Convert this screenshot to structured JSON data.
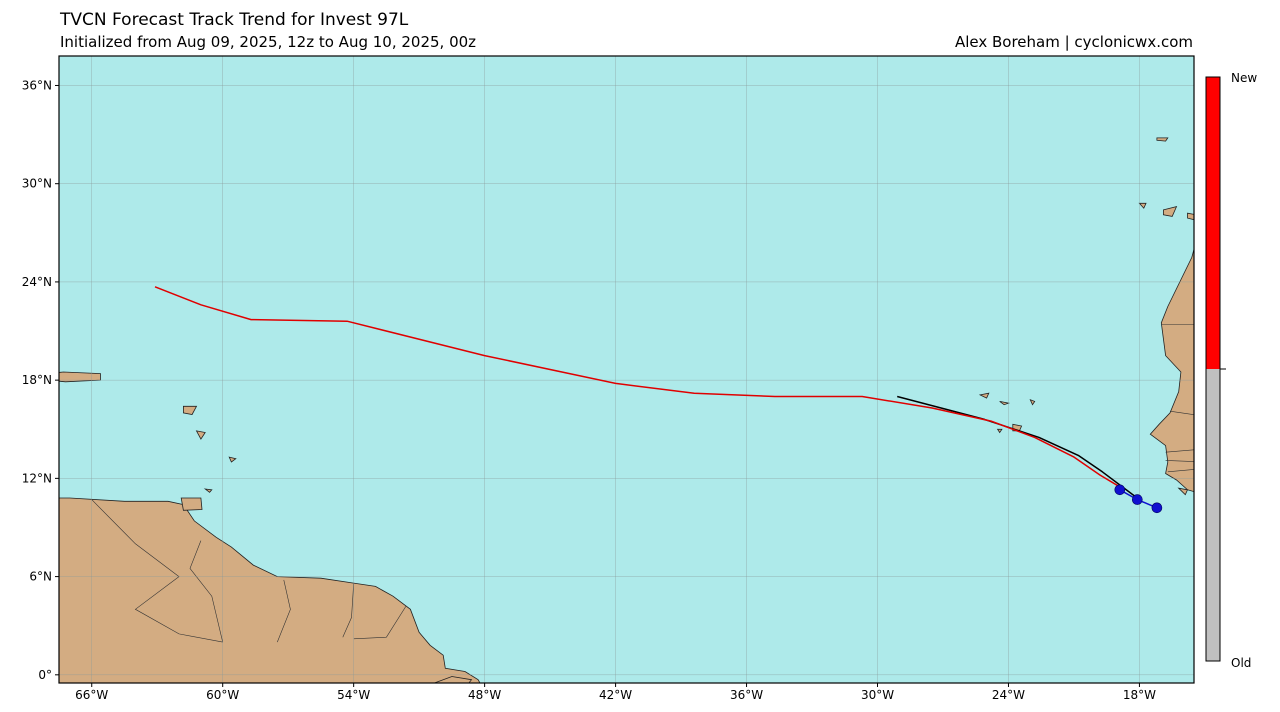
{
  "header": {
    "title": "TVCN Forecast Track Trend for Invest 97L",
    "subtitle": "Initialized from Aug 09, 2025, 12z to Aug 10, 2025, 00z",
    "credit": "Alex Boreham | cyclonicwx.com"
  },
  "map": {
    "lon_range": [
      -67.5,
      -15.5
    ],
    "lat_range": [
      -0.5,
      37.8
    ],
    "ocean_color": "#aeeaea",
    "land_color": "#d3ac82",
    "lon_ticks": [
      {
        "value": -66,
        "label": "66°W"
      },
      {
        "value": -60,
        "label": "60°W"
      },
      {
        "value": -54,
        "label": "54°W"
      },
      {
        "value": -48,
        "label": "48°W"
      },
      {
        "value": -42,
        "label": "42°W"
      },
      {
        "value": -36,
        "label": "36°W"
      },
      {
        "value": -30,
        "label": "30°W"
      },
      {
        "value": -24,
        "label": "24°W"
      },
      {
        "value": -18,
        "label": "18°W"
      }
    ],
    "lat_ticks": [
      {
        "value": 0,
        "label": "0°"
      },
      {
        "value": 6,
        "label": "6°N"
      },
      {
        "value": 12,
        "label": "12°N"
      },
      {
        "value": 18,
        "label": "18°N"
      },
      {
        "value": 24,
        "label": "24°N"
      },
      {
        "value": 30,
        "label": "30°N"
      },
      {
        "value": 36,
        "label": "36°N"
      }
    ],
    "tracks": [
      {
        "run": "Aug 10, 2025, 00z",
        "color": "#e00000",
        "points": [
          [
            -18.8,
            11.4
          ],
          [
            -19.8,
            12.2
          ],
          [
            -21.0,
            13.3
          ],
          [
            -22.8,
            14.5
          ],
          [
            -24.8,
            15.5
          ],
          [
            -27.5,
            16.3
          ],
          [
            -30.7,
            17.0
          ],
          [
            -34.7,
            17.0
          ],
          [
            -38.4,
            17.2
          ],
          [
            -42.0,
            17.8
          ],
          [
            -48.0,
            19.5
          ],
          [
            -54.3,
            21.6
          ],
          [
            -58.7,
            21.7
          ],
          [
            -61.0,
            22.6
          ],
          [
            -63.1,
            23.7
          ]
        ]
      },
      {
        "run": "Aug 09, 2025, 12z",
        "color": "#000000",
        "points": [
          [
            -18.0,
            10.7
          ],
          [
            -19.7,
            12.4
          ],
          [
            -20.8,
            13.4
          ],
          [
            -22.6,
            14.5
          ],
          [
            -25.1,
            15.6
          ],
          [
            -29.1,
            17.0
          ]
        ]
      }
    ],
    "initial_positions": [
      [
        -17.2,
        10.2
      ],
      [
        -18.1,
        10.7
      ],
      [
        -18.9,
        11.3
      ]
    ],
    "initial_color": "#1010d0"
  },
  "colorbar": {
    "label_new": "New",
    "label_old": "Old",
    "new_color": "#ff0000",
    "old_color": "#c0c0c0",
    "split_fraction": 0.5
  }
}
